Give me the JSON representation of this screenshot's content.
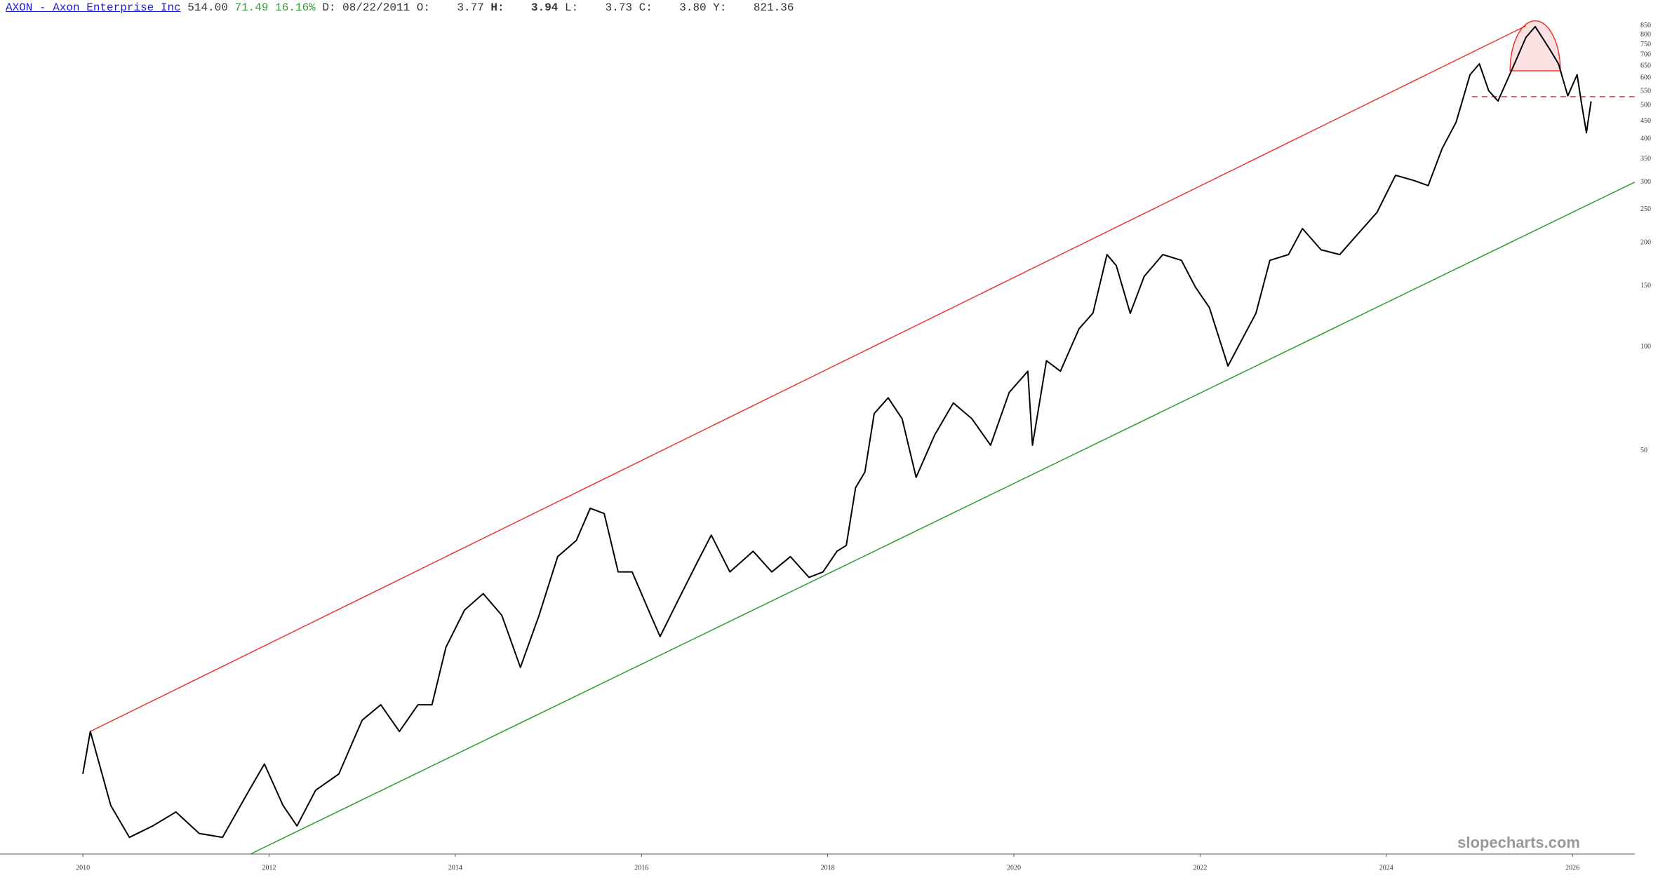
{
  "header": {
    "title": "AXON - Axon Enterprise Inc",
    "price": "514.00",
    "change": "71.49",
    "change_pct": "16.16%",
    "fields": [
      {
        "label": "D:",
        "value": "08/22/2011"
      },
      {
        "label": "O:",
        "value": "3.77"
      },
      {
        "label": "H:",
        "value": "3.94"
      },
      {
        "label": "L:",
        "value": "3.73"
      },
      {
        "label": "C:",
        "value": "3.80"
      },
      {
        "label": "Y:",
        "value": "821.36"
      }
    ]
  },
  "chart_data": {
    "type": "line",
    "log_scale": true,
    "grid": false,
    "watermark": "slopecharts.com",
    "x": [
      2010.0,
      2010.08,
      2010.3,
      2010.5,
      2010.75,
      2011.0,
      2011.25,
      2011.5,
      2011.75,
      2011.95,
      2012.15,
      2012.3,
      2012.5,
      2012.75,
      2012.9,
      2013.0,
      2013.2,
      2013.4,
      2013.6,
      2013.75,
      2013.9,
      2014.1,
      2014.3,
      2014.5,
      2014.7,
      2014.9,
      2015.1,
      2015.3,
      2015.45,
      2015.6,
      2015.75,
      2015.9,
      2016.1,
      2016.2,
      2016.4,
      2016.6,
      2016.75,
      2016.95,
      2017.2,
      2017.4,
      2017.6,
      2017.8,
      2017.95,
      2018.1,
      2018.2,
      2018.3,
      2018.4,
      2018.5,
      2018.65,
      2018.8,
      2018.95,
      2019.15,
      2019.35,
      2019.55,
      2019.75,
      2019.95,
      2020.15,
      2020.2,
      2020.35,
      2020.5,
      2020.7,
      2020.85,
      2021.0,
      2021.1,
      2021.25,
      2021.4,
      2021.6,
      2021.8,
      2021.95,
      2022.1,
      2022.3,
      2022.45,
      2022.6,
      2022.75,
      2022.95,
      2023.1,
      2023.3,
      2023.5,
      2023.7,
      2023.9,
      2024.1,
      2024.3,
      2024.45,
      2024.6,
      2024.75,
      2024.9,
      2025.0,
      2025.1,
      2025.2,
      2025.35,
      2025.5,
      2025.6,
      2025.75,
      2025.85,
      2025.95,
      2026.05,
      2026.1,
      2026.15,
      2026.2
    ],
    "series": [
      {
        "name": "AXON",
        "color": "#000000",
        "values": [
          5.8,
          7.7,
          4.7,
          3.8,
          4.1,
          4.5,
          3.9,
          3.8,
          5.0,
          6.2,
          4.7,
          4.1,
          5.2,
          5.8,
          7.2,
          8.3,
          9.2,
          7.7,
          9.2,
          9.2,
          13.5,
          17.3,
          19.3,
          16.7,
          11.8,
          16.7,
          24.7,
          27.5,
          34.1,
          32.9,
          22.3,
          22.3,
          16.7,
          14.5,
          18.6,
          23.8,
          28.5,
          22.3,
          25.6,
          22.3,
          24.7,
          21.5,
          22.3,
          25.6,
          26.6,
          39.1,
          43.4,
          64.1,
          71.2,
          61.9,
          41.9,
          55.6,
          68.8,
          61.9,
          51.9,
          73.8,
          85,
          51.9,
          91.2,
          85,
          112.8,
          125.3,
          185,
          172,
          125,
          160,
          185,
          178,
          149,
          130,
          88,
          105,
          125,
          178,
          185,
          220,
          191,
          185,
          213,
          245,
          314,
          303,
          293,
          375,
          447,
          614,
          660,
          552,
          515,
          635,
          787,
          846,
          732,
          660,
          533,
          614,
          502,
          417,
          514
        ]
      }
    ],
    "annotations": [
      {
        "color": "#e53935",
        "dashed": false,
        "x": [
          2010.08,
          2025.5
        ],
        "y": [
          7.7,
          850
        ]
      },
      {
        "color": "#2e9b2e",
        "dashed": false,
        "x": [
          2011.8,
          2026.67
        ],
        "y": [
          3.4,
          300
        ]
      },
      {
        "color": "#e53935",
        "dashed": true,
        "x": [
          2024.92,
          2026.67
        ],
        "y": [
          530,
          530
        ]
      }
    ],
    "highlight": {
      "color": "#e53935",
      "xlim": [
        2025.33,
        2025.87
      ],
      "ylim": [
        630,
        880
      ]
    },
    "xlim": [
      2009.11,
      2026.67
    ],
    "ylim": [
      3.4,
      1010
    ],
    "xticks": [
      2010,
      2012,
      2014,
      2016,
      2018,
      2020,
      2022,
      2024,
      2026
    ],
    "yticks": [
      850,
      800,
      750,
      700,
      650,
      600,
      550,
      500,
      450,
      400,
      350,
      300,
      250,
      200,
      150,
      100,
      50
    ]
  }
}
